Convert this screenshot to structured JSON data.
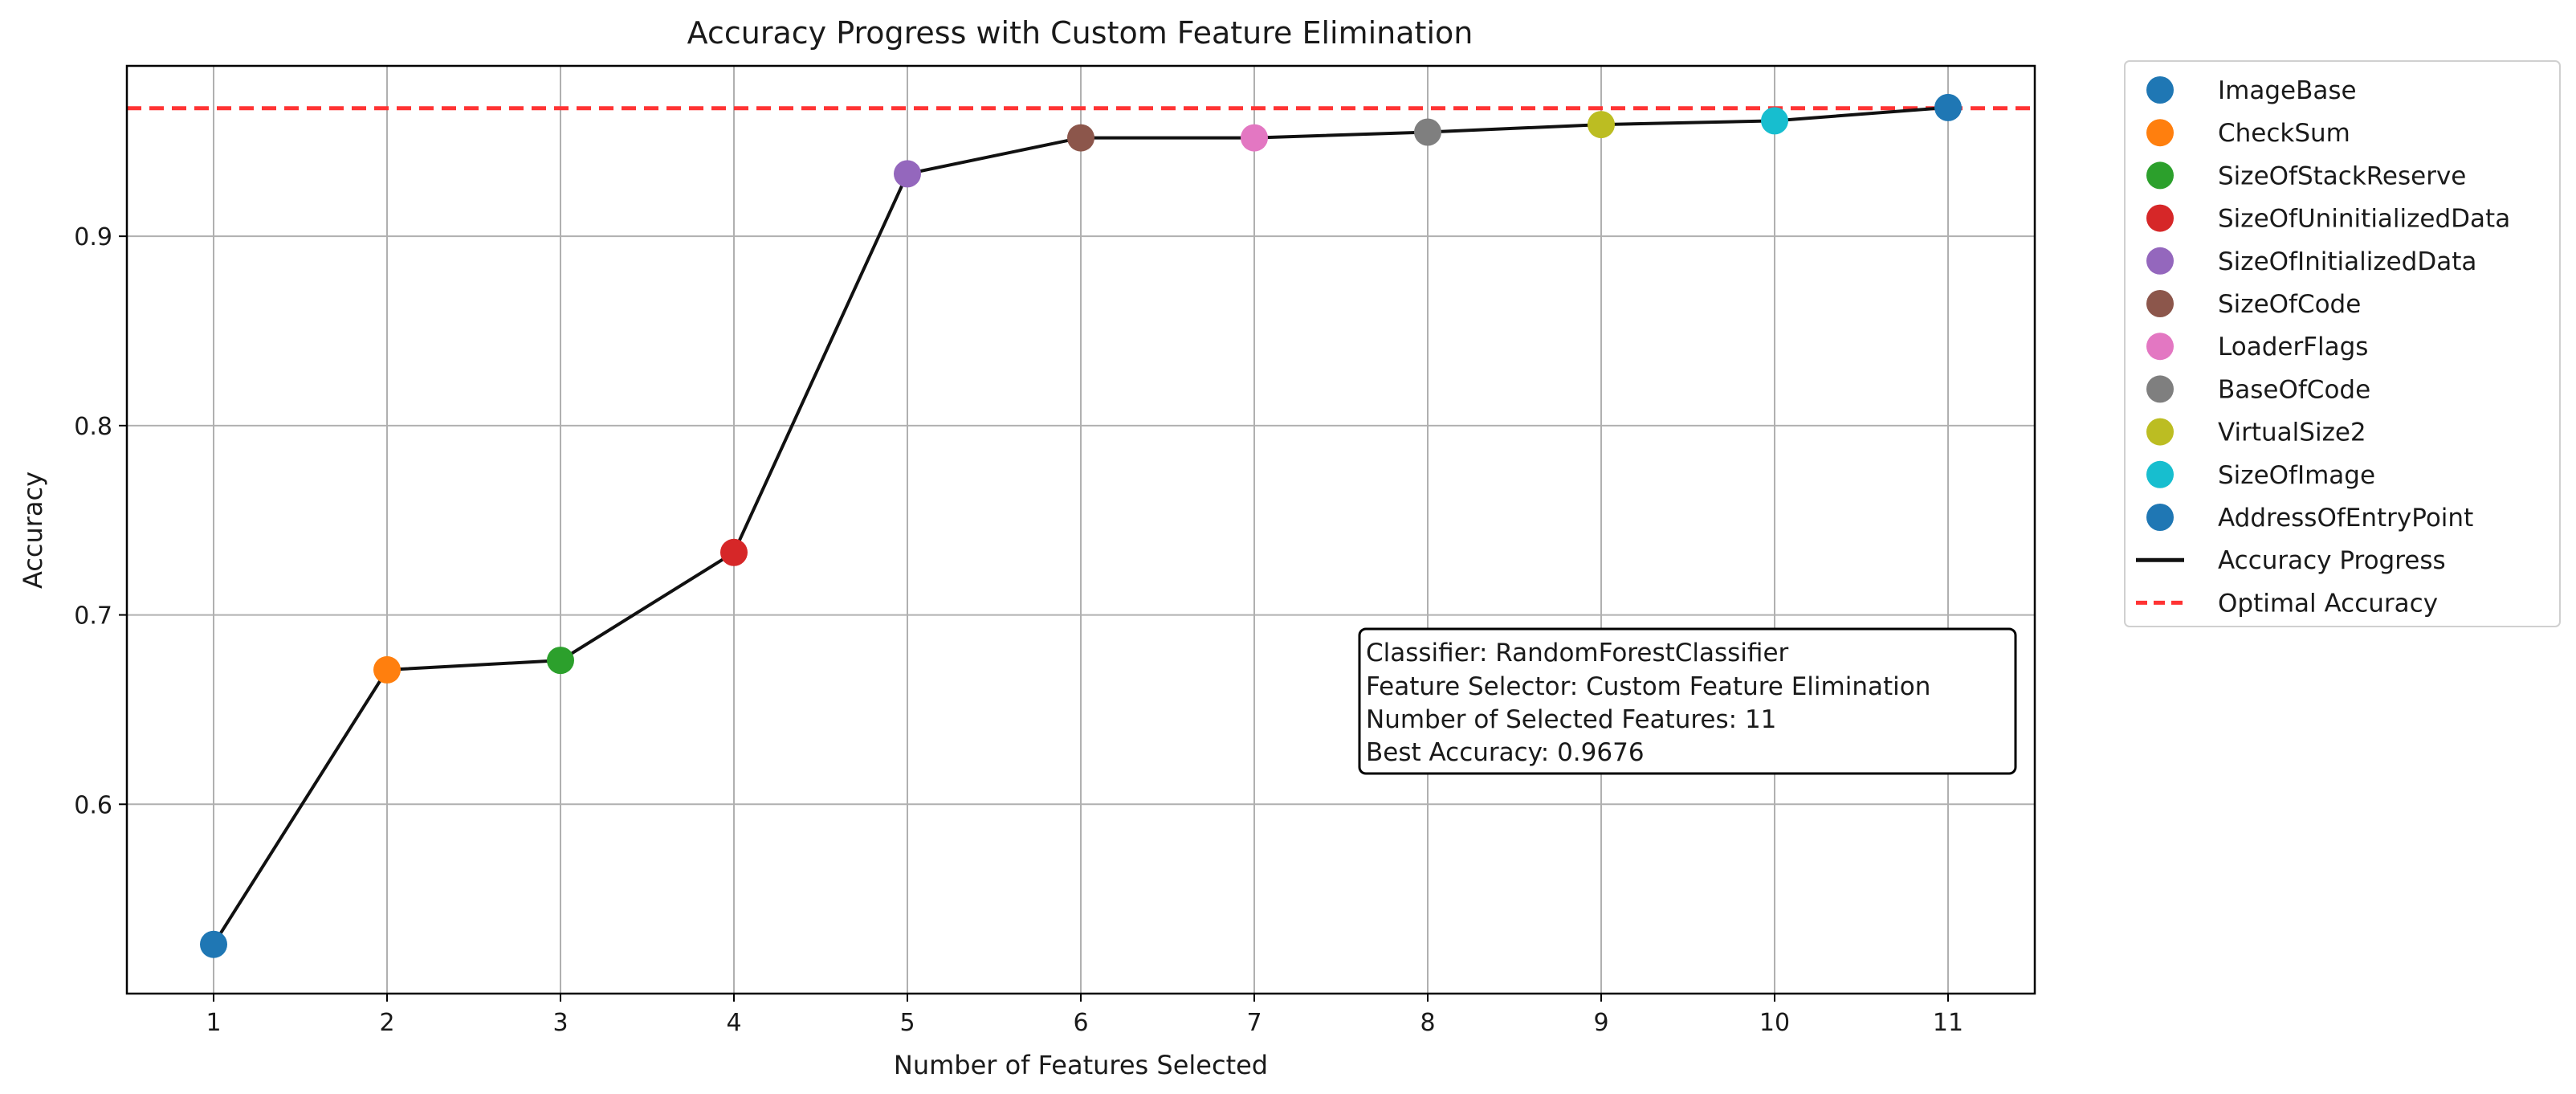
{
  "chart_data": {
    "type": "line",
    "title": "Accuracy Progress with Custom Feature Elimination",
    "xlabel": "Number of Features Selected",
    "ylabel": "Accuracy",
    "x": [
      1,
      2,
      3,
      4,
      5,
      6,
      7,
      8,
      9,
      10,
      11
    ],
    "x_ticks": [
      "1",
      "2",
      "3",
      "4",
      "5",
      "6",
      "7",
      "8",
      "9",
      "10",
      "11"
    ],
    "y_ticks": [
      "0.6",
      "0.7",
      "0.8",
      "0.9"
    ],
    "y_tick_values": [
      0.6,
      0.7,
      0.8,
      0.9
    ],
    "xlim": [
      0.5,
      11.5
    ],
    "ylim": [
      0.5,
      0.99
    ],
    "grid": true,
    "series": [
      {
        "name": "Accuracy Progress",
        "color": "#111111",
        "values": [
          0.526,
          0.671,
          0.676,
          0.733,
          0.933,
          0.952,
          0.952,
          0.955,
          0.959,
          0.961,
          0.968
        ]
      }
    ],
    "points": [
      {
        "name": "ImageBase",
        "x": 1,
        "y": 0.526,
        "color": "#1f77b4"
      },
      {
        "name": "CheckSum",
        "x": 2,
        "y": 0.671,
        "color": "#ff7f0e"
      },
      {
        "name": "SizeOfStackReserve",
        "x": 3,
        "y": 0.676,
        "color": "#2ca02c"
      },
      {
        "name": "SizeOfUninitializedData",
        "x": 4,
        "y": 0.733,
        "color": "#d62728"
      },
      {
        "name": "SizeOfInitializedData",
        "x": 5,
        "y": 0.933,
        "color": "#9467bd"
      },
      {
        "name": "SizeOfCode",
        "x": 6,
        "y": 0.952,
        "color": "#8c564b"
      },
      {
        "name": "LoaderFlags",
        "x": 7,
        "y": 0.952,
        "color": "#e377c2"
      },
      {
        "name": "BaseOfCode",
        "x": 8,
        "y": 0.955,
        "color": "#7f7f7f"
      },
      {
        "name": "VirtualSize2",
        "x": 9,
        "y": 0.959,
        "color": "#bcbd22"
      },
      {
        "name": "SizeOfImage",
        "x": 10,
        "y": 0.961,
        "color": "#17becf"
      },
      {
        "name": "AddressOfEntryPoint",
        "x": 11,
        "y": 0.968,
        "color": "#1f77b4"
      }
    ],
    "reference_line": {
      "name": "Optimal Accuracy",
      "y": 0.9676,
      "color": "#ff3333",
      "style": "dashed"
    },
    "legend_placement": "outside-right",
    "annotation": [
      "Classifier: RandomForestClassifier",
      "Feature Selector: Custom Feature Elimination",
      "Number of Selected Features: 11",
      "Best Accuracy: 0.9676"
    ]
  }
}
